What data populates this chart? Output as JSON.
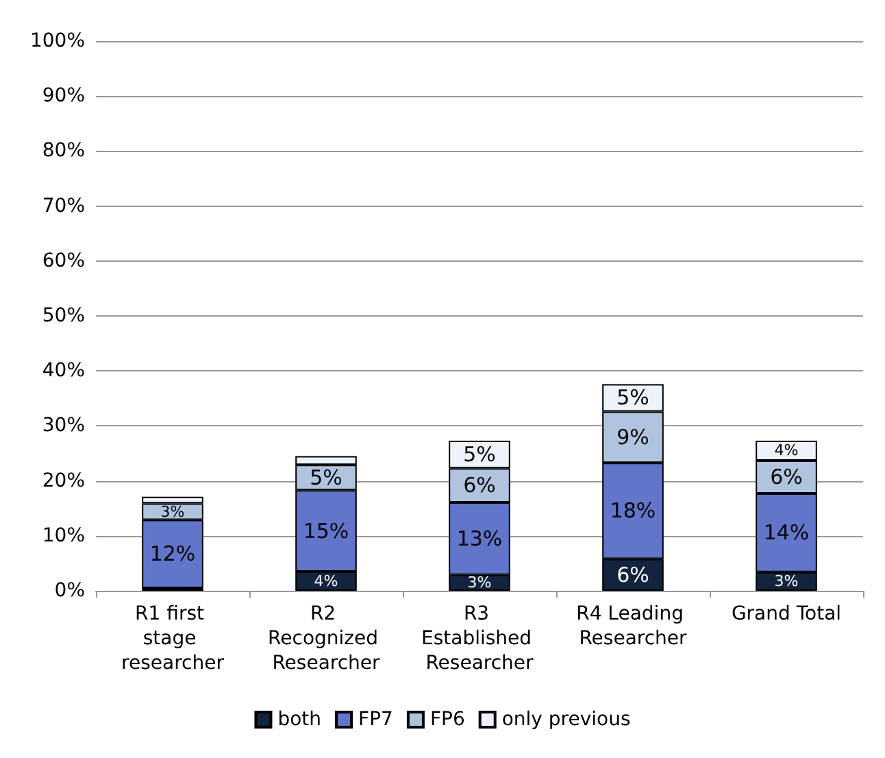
{
  "chart_data": {
    "type": "bar",
    "stacked": true,
    "categories": [
      "R1 first stage researcher",
      "R2 Recognized Researcher",
      "R3 Established Researcher",
      "R4 Leading Researcher",
      "Grand Total"
    ],
    "series": [
      {
        "name": "both",
        "color": "#13243f",
        "values": [
          0.5,
          3.5,
          2.9,
          5.8,
          3.4
        ],
        "value_labels": [
          null,
          "4%",
          "3%",
          "6%",
          "3%"
        ]
      },
      {
        "name": "FP7",
        "color": "#6175cb",
        "values": [
          12.4,
          14.8,
          13.2,
          17.5,
          14.3
        ],
        "value_labels": [
          "12%",
          "15%",
          "13%",
          "18%",
          "14%"
        ]
      },
      {
        "name": "FP6",
        "color": "#b0c4e0",
        "values": [
          3,
          4.6,
          6.2,
          9.3,
          6
        ],
        "value_labels": [
          "3%",
          "5%",
          "6%",
          "9%",
          "6%"
        ]
      },
      {
        "name": "only previous",
        "color": "#eef2fa",
        "values": [
          1.2,
          1.6,
          5,
          5,
          3.6
        ],
        "value_labels": [
          null,
          null,
          "5%",
          "5%",
          "4%"
        ]
      }
    ],
    "ylim": [
      0,
      100
    ],
    "yticks": [
      {
        "value": 0,
        "label": "0%"
      },
      {
        "value": 10,
        "label": "10%"
      },
      {
        "value": 20,
        "label": "20%"
      },
      {
        "value": 30,
        "label": "30%"
      },
      {
        "value": 40,
        "label": "40%"
      },
      {
        "value": 50,
        "label": "50%"
      },
      {
        "value": 60,
        "label": "60%"
      },
      {
        "value": 70,
        "label": "70%"
      },
      {
        "value": 80,
        "label": "80%"
      },
      {
        "value": 90,
        "label": "90%"
      },
      {
        "value": 100,
        "label": "100%"
      }
    ],
    "grid": "y",
    "legend": "bottom"
  }
}
